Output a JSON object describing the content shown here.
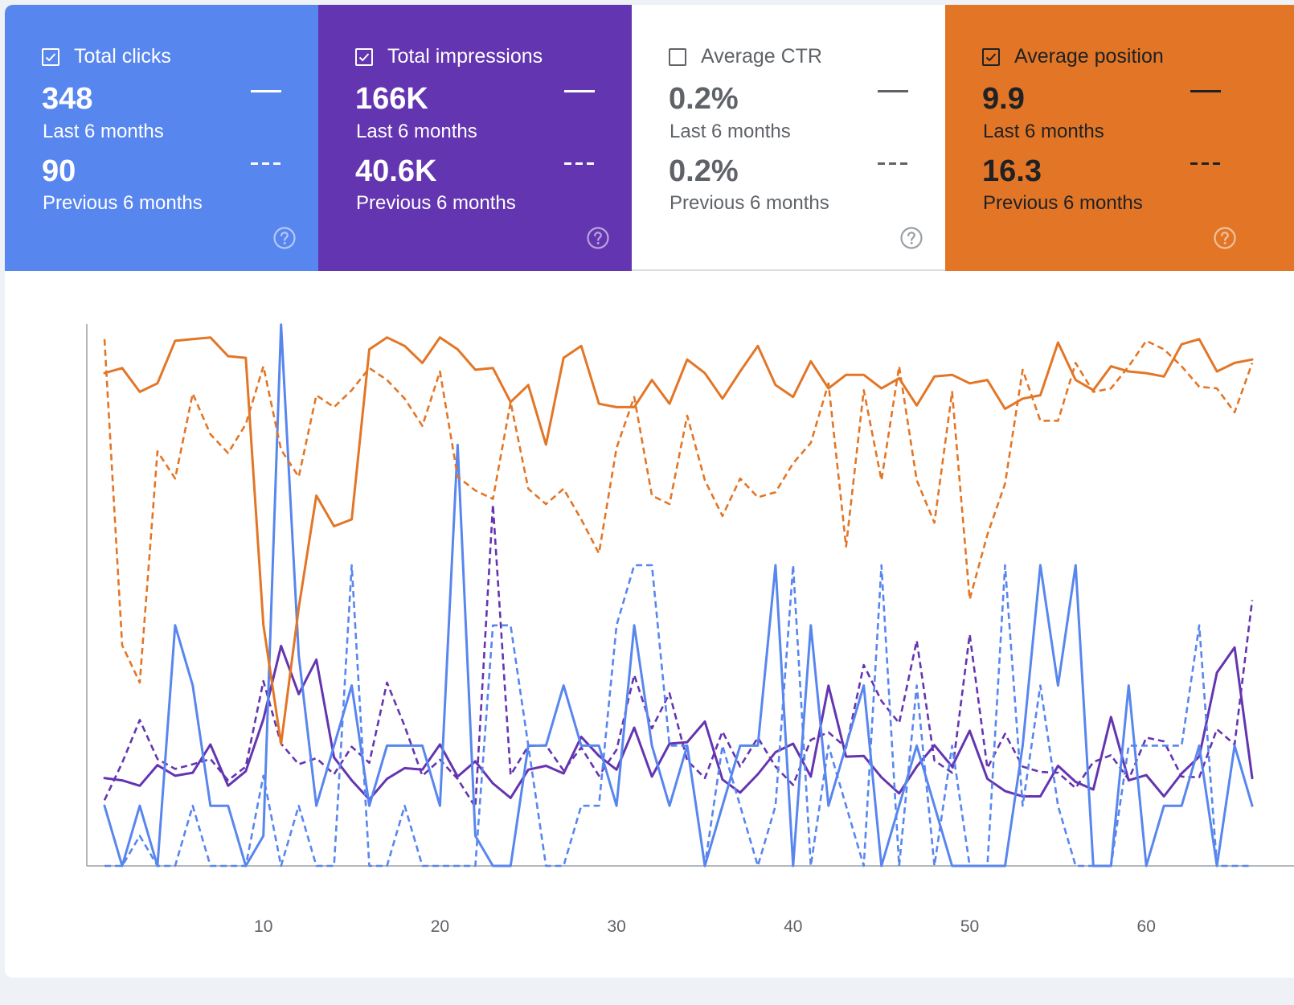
{
  "cards": [
    {
      "label": "Total clicks",
      "checked": true,
      "value_current": "348",
      "label_current": "Last 6 months",
      "value_previous": "90",
      "label_previous": "Previous 6 months",
      "bg": "#5886ef",
      "fg": "#ffffff"
    },
    {
      "label": "Total impressions",
      "checked": true,
      "value_current": "166K",
      "label_current": "Last 6 months",
      "value_previous": "40.6K",
      "label_previous": "Previous 6 months",
      "bg": "#6435b0",
      "fg": "#ffffff"
    },
    {
      "label": "Average CTR",
      "checked": false,
      "value_current": "0.2%",
      "label_current": "Last 6 months",
      "value_previous": "0.2%",
      "label_previous": "Previous 6 months",
      "bg": "#ffffff",
      "fg": "#5f6368"
    },
    {
      "label": "Average position",
      "checked": true,
      "value_current": "9.9",
      "label_current": "Last 6 months",
      "value_previous": "16.3",
      "label_previous": "Previous 6 months",
      "bg": "#e37626",
      "fg": "#202124"
    }
  ],
  "chart_data": {
    "type": "line",
    "x_ticks": [
      10,
      20,
      30,
      40,
      50,
      60
    ],
    "x_range": [
      1,
      66
    ],
    "legend": "in-cards",
    "series": [
      {
        "name": "Average position",
        "style": "solid",
        "color": "#e37626",
        "values": [
          10.2,
          9.9,
          11.3,
          10.8,
          8.3,
          8.2,
          8.1,
          9.2,
          9.3,
          25,
          32,
          24,
          17.4,
          19.2,
          18.8,
          8.8,
          8.1,
          8.6,
          9.6,
          8.1,
          8.8,
          10,
          9.9,
          11.9,
          10.9,
          14.4,
          9.3,
          8.6,
          12,
          12.2,
          12.2,
          10.6,
          12,
          9.4,
          10.2,
          11.7,
          10.1,
          8.6,
          10.9,
          11.6,
          9.5,
          11.1,
          10.3,
          10.3,
          11.1,
          10.5,
          12.1,
          10.4,
          10.3,
          10.8,
          10.6,
          12.3,
          11.7,
          11.5,
          8.4,
          10.6,
          11.2,
          9.8,
          10.1,
          10.2,
          10.4,
          8.5,
          8.2,
          10.1,
          9.6,
          9.4
        ]
      },
      {
        "name": "Average position",
        "style": "dashed",
        "color": "#e37626",
        "values": [
          8.2,
          26.2,
          28.4,
          14.8,
          16.4,
          11.4,
          13.8,
          14.9,
          13.2,
          9.8,
          14.7,
          16.3,
          11.5,
          12.2,
          11.2,
          9.9,
          10.6,
          11.7,
          13.3,
          10.1,
          16.3,
          17.1,
          17.6,
          11.9,
          17,
          17.9,
          17,
          18.8,
          20.8,
          14.6,
          11.6,
          17.4,
          17.9,
          12.7,
          16.5,
          18.6,
          16.4,
          17.5,
          17.2,
          15.5,
          14.3,
          10.8,
          20.4,
          11.2,
          16.5,
          9.8,
          16.5,
          19,
          11.3,
          23.5,
          19.7,
          16.7,
          10,
          13,
          13,
          9.6,
          11.3,
          11.1,
          9.8,
          8.3,
          8.8,
          9.8,
          11,
          11.1,
          12.5,
          9.6
        ]
      },
      {
        "name": "Total clicks",
        "style": "solid",
        "color": "#5886ef",
        "values": [
          2,
          0,
          2,
          0,
          8,
          6,
          2,
          2,
          0,
          1,
          18,
          7,
          2,
          4,
          6,
          2,
          4,
          4,
          4,
          2,
          14,
          1,
          0,
          0,
          4,
          4,
          6,
          4,
          4,
          2,
          8,
          4,
          2,
          4,
          0,
          2,
          4,
          4,
          10,
          0,
          8,
          2,
          4,
          6,
          0,
          2,
          4,
          2,
          0,
          0,
          0,
          0,
          4,
          10,
          6,
          10,
          0,
          0,
          6,
          0,
          2,
          2,
          4,
          0,
          4,
          2
        ]
      },
      {
        "name": "Total clicks",
        "style": "dashed",
        "color": "#5886ef",
        "values": [
          0,
          0,
          1,
          0,
          0,
          2,
          0,
          0,
          0,
          3,
          0,
          2,
          0,
          0,
          10,
          0,
          0,
          2,
          0,
          0,
          0,
          0,
          8,
          8,
          4,
          0,
          0,
          2,
          2,
          8,
          10,
          10,
          4,
          4,
          0,
          4,
          2,
          0,
          2,
          10,
          0,
          4,
          2,
          0,
          10,
          0,
          6,
          0,
          4,
          0,
          0,
          10,
          2,
          6,
          2,
          0,
          0,
          0,
          4,
          4,
          4,
          4,
          8,
          0,
          0,
          0
        ]
      },
      {
        "name": "Total impressions",
        "style": "solid",
        "color": "#6435b0",
        "values": [
          1150,
          1120,
          1050,
          1320,
          1180,
          1220,
          1590,
          1050,
          1240,
          1920,
          2880,
          2250,
          2700,
          1420,
          1120,
          870,
          1140,
          1280,
          1260,
          1590,
          1170,
          1370,
          1080,
          890,
          1260,
          1310,
          1210,
          1690,
          1440,
          1260,
          1810,
          1170,
          1600,
          1620,
          1890,
          1130,
          960,
          1200,
          1490,
          1600,
          1170,
          2360,
          1430,
          1440,
          1160,
          950,
          1300,
          1580,
          1300,
          1770,
          1140,
          980,
          910,
          910,
          1310,
          1100,
          1000,
          1950,
          1120,
          1190,
          910,
          1210,
          1430,
          2530,
          2860,
          1150
        ]
      },
      {
        "name": "Total impressions",
        "style": "dashed",
        "color": "#6435b0",
        "values": [
          860,
          1350,
          1910,
          1400,
          1270,
          1330,
          1400,
          1120,
          1300,
          2420,
          1600,
          1330,
          1410,
          1200,
          1560,
          1350,
          2400,
          1830,
          1180,
          1390,
          1140,
          770,
          4730,
          1190,
          1570,
          1580,
          1250,
          1550,
          1180,
          1520,
          2500,
          1800,
          2260,
          1380,
          1150,
          1760,
          1300,
          1680,
          1300,
          1060,
          1650,
          1750,
          1550,
          2630,
          2160,
          1870,
          2950,
          1380,
          1220,
          3030,
          1280,
          1730,
          1300,
          1230,
          1220,
          1020,
          1360,
          1450,
          1130,
          1680,
          1630,
          1170,
          1160,
          1790,
          1590,
          3480
        ]
      }
    ]
  }
}
